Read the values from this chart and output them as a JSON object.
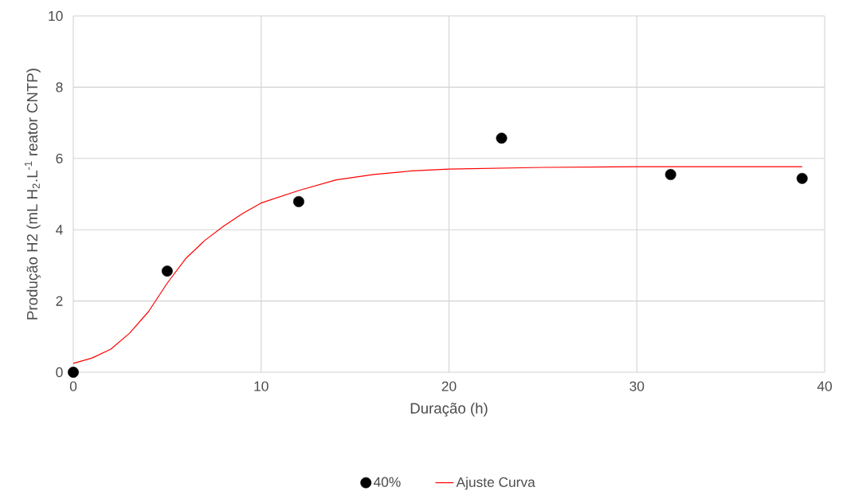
{
  "chart_data": {
    "type": "scatter",
    "xlabel": "Duração (h)",
    "ylabel": "Produção H2 (mL H$_{2}$.L$^{-1}$ reator CNTP)",
    "xlim": [
      0,
      40
    ],
    "ylim": [
      0,
      10
    ],
    "xticks": [
      0,
      10,
      20,
      30,
      40
    ],
    "yticks": [
      0,
      2,
      4,
      6,
      8,
      10
    ],
    "grid": true,
    "legend": "bottom",
    "series": [
      {
        "name": "40%",
        "color": "#000000",
        "marker": "circle",
        "x": [
          0,
          5,
          12,
          22.8,
          31.8,
          38.8
        ],
        "values": [
          0,
          2.84,
          4.79,
          6.57,
          5.55,
          5.44
        ]
      },
      {
        "name": "Ajuste Curva",
        "type": "line",
        "color": "#ff0000",
        "marker": "none",
        "x": [
          0,
          1,
          2,
          3,
          4,
          5,
          6,
          7,
          8,
          9,
          10,
          12,
          14,
          16,
          18,
          20,
          25,
          30,
          35,
          38.8
        ],
        "values": [
          0.25,
          0.4,
          0.65,
          1.1,
          1.7,
          2.5,
          3.2,
          3.7,
          4.1,
          4.45,
          4.75,
          5.1,
          5.4,
          5.55,
          5.65,
          5.7,
          5.75,
          5.77,
          5.77,
          5.77
        ]
      }
    ]
  }
}
